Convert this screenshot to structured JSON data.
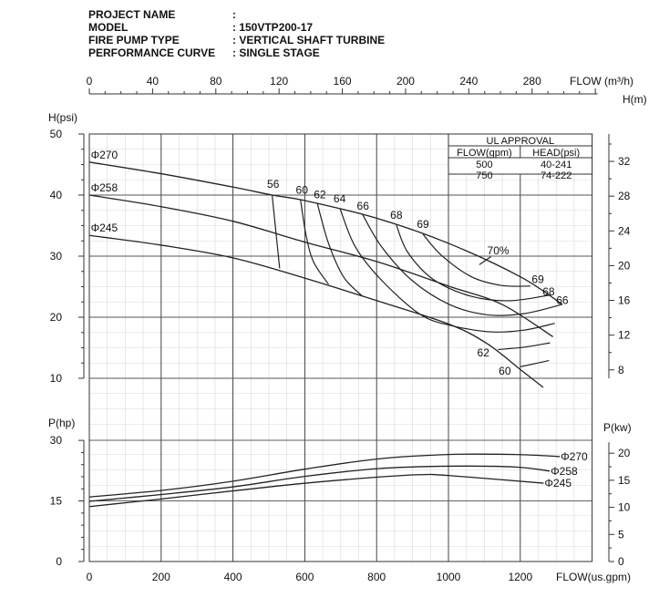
{
  "header": {
    "rows": [
      {
        "label": "PROJECT NAME",
        "value": ":"
      },
      {
        "label": "MODEL",
        "value": ": 150VTP200-17"
      },
      {
        "label": "FIRE PUMP TYPE",
        "value": ": VERTICAL SHAFT TURBINE"
      },
      {
        "label": "PERFORMANCE CURVE",
        "value": ": SINGLE STAGE"
      }
    ]
  },
  "ul_table": {
    "title": "UL APPROVAL",
    "col1": "FLOW(gpm)",
    "col2": "HEAD(psi)",
    "rows": [
      [
        "500",
        "40-241"
      ],
      [
        "750",
        "74-222"
      ]
    ]
  },
  "chart_data": {
    "type": "line",
    "x_axis": {
      "label": "FLOW(us.gpm)",
      "range": [
        0,
        1400
      ],
      "ticks": [
        "0",
        "200",
        "400",
        "600",
        "800",
        "1000",
        "1200"
      ]
    },
    "x2_axis": {
      "label": "FLOW (m³/h)",
      "ticks": [
        "0",
        "40",
        "80",
        "120",
        "160",
        "200",
        "240",
        "280"
      ]
    },
    "head": {
      "ylabel": "H(psi)",
      "ylim": [
        10,
        50
      ],
      "ticks": [
        "50",
        "40",
        "30",
        "20",
        "10"
      ],
      "y2label": "H(m)",
      "y2ticks": [
        "32",
        "28",
        "24",
        "20",
        "16",
        "12",
        "8"
      ],
      "series": [
        {
          "name": "Φ270",
          "points": [
            [
              0,
              45.4
            ],
            [
              200,
              43.5
            ],
            [
              401,
              41.3
            ],
            [
              509,
              40
            ],
            [
              600,
              39.1
            ],
            [
              801,
              36.2
            ],
            [
              1000,
              32.1
            ],
            [
              1201,
              26.6
            ],
            [
              1317,
              22.1
            ]
          ]
        },
        {
          "name": "Φ258",
          "points": [
            [
              0,
              40
            ],
            [
              200,
              38.1
            ],
            [
              401,
              35.7
            ],
            [
              600,
              32.3
            ],
            [
              801,
              29.1
            ],
            [
              1000,
              25.1
            ],
            [
              1149,
              22.1
            ],
            [
              1291,
              16.8
            ]
          ]
        },
        {
          "name": "Φ245",
          "points": [
            [
              0,
              33.4
            ],
            [
              200,
              31.8
            ],
            [
              401,
              29.7
            ],
            [
              600,
              26.4
            ],
            [
              801,
              22.7
            ],
            [
              1000,
              18.9
            ],
            [
              1107,
              15.7
            ],
            [
              1201,
              11.4
            ],
            [
              1264,
              8.5
            ]
          ]
        }
      ],
      "efficiency": [
        {
          "name": "56",
          "points": [
            [
              509,
              40
            ],
            [
              530,
              28
            ]
          ],
          "label_at": [
            495,
            41.2
          ]
        },
        {
          "name": "60",
          "points": [
            [
              588,
              39.3
            ],
            [
              603,
              33.6
            ],
            [
              624,
              29.1
            ],
            [
              666,
              25.4
            ]
          ],
          "label_at": [
            575,
            40.2
          ]
        },
        {
          "name": "62",
          "points": [
            [
              635,
              38.6
            ],
            [
              666,
              32.1
            ],
            [
              708,
              26.6
            ],
            [
              761,
              23.4
            ]
          ],
          "label_at": [
            625,
            39.5
          ]
        },
        {
          "name": "64",
          "points": [
            [
              698,
              37.8
            ],
            [
              740,
              31.6
            ],
            [
              813,
              26.1
            ],
            [
              918,
              20.6
            ],
            [
              1002,
              18.7
            ],
            [
              1118,
              17.6
            ],
            [
              1212,
              17.9
            ],
            [
              1296,
              19
            ]
          ],
          "label_at": [
            680,
            38.8
          ]
        },
        {
          "name": "66",
          "points": [
            [
              761,
              36.8
            ],
            [
              813,
              31.6
            ],
            [
              897,
              26.1
            ],
            [
              1002,
              22.1
            ],
            [
              1107,
              20.4
            ],
            [
              1212,
              20.6
            ],
            [
              1317,
              22.1
            ]
          ],
          "label_at": [
            745,
            37.6
          ]
        },
        {
          "name": "68",
          "points": [
            [
              855,
              35.1
            ],
            [
              887,
              30.6
            ],
            [
              960,
              26.1
            ],
            [
              1065,
              23.4
            ],
            [
              1170,
              22.7
            ],
            [
              1280,
              23.6
            ]
          ],
          "label_at": [
            838,
            36.1
          ]
        },
        {
          "name": "69",
          "points": [
            [
              929,
              33.6
            ],
            [
              981,
              30.1
            ],
            [
              1065,
              26.6
            ],
            [
              1149,
              25.2
            ],
            [
              1228,
              25.1
            ]
          ],
          "label_at": [
            912,
            34.6
          ]
        },
        {
          "name": "62",
          "points": [
            [
              1138,
              14.7
            ],
            [
              1212,
              15.1
            ],
            [
              1283,
              15.8
            ]
          ],
          "label_at": [
            1080,
            13.6
          ]
        },
        {
          "name": "60",
          "points": [
            [
              1201,
              11.9
            ],
            [
              1280,
              12.9
            ]
          ],
          "label_at": [
            1140,
            10.6
          ]
        },
        {
          "name": "70%",
          "points": [
            [
              1086,
              28.6
            ],
            [
              1118,
              29.9
            ]
          ],
          "label_at": [
            1108,
            30.3
          ]
        }
      ],
      "right_labels": [
        {
          "text": "69",
          "at": [
            1232,
            25.6
          ]
        },
        {
          "text": "68",
          "at": [
            1262,
            23.6
          ]
        },
        {
          "text": "66",
          "at": [
            1300,
            22.2
          ]
        }
      ]
    },
    "power": {
      "ylabel": "P(hp)",
      "ylim": [
        0,
        30
      ],
      "ticks": [
        "30",
        "15",
        "0"
      ],
      "y2label": "P(kw)",
      "y2ticks": [
        "20",
        "15",
        "10",
        "5",
        "0"
      ],
      "series": [
        {
          "name": "Φ270",
          "points": [
            [
              0,
              16
            ],
            [
              201,
              17.6
            ],
            [
              401,
              19.9
            ],
            [
              602,
              22.9
            ],
            [
              803,
              25.4
            ],
            [
              1000,
              26.5
            ],
            [
              1187,
              26.5
            ],
            [
              1310,
              26
            ]
          ]
        },
        {
          "name": "Φ258",
          "points": [
            [
              0,
              14.9
            ],
            [
              201,
              16.6
            ],
            [
              401,
              18.5
            ],
            [
              602,
              21.1
            ],
            [
              803,
              23
            ],
            [
              1000,
              23.6
            ],
            [
              1187,
              23.4
            ],
            [
              1282,
              22.4
            ]
          ]
        },
        {
          "name": "Φ245",
          "points": [
            [
              0,
              13.6
            ],
            [
              201,
              15.5
            ],
            [
              401,
              17.5
            ],
            [
              602,
              19.4
            ],
            [
              803,
              20.9
            ],
            [
              920,
              21.5
            ],
            [
              1000,
              21.3
            ],
            [
              1265,
              19.4
            ]
          ]
        }
      ]
    }
  }
}
